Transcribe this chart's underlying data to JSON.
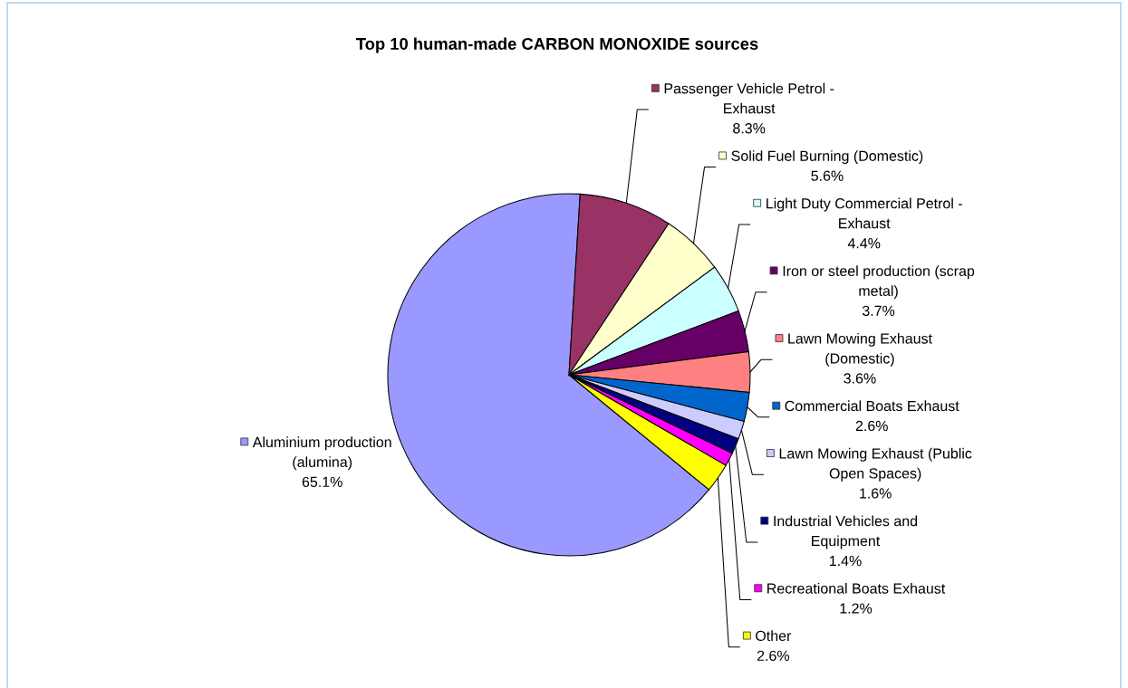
{
  "chart_data": {
    "type": "pie",
    "title": "Top 10 human-made CARBON MONOXIDE sources",
    "categories": [
      "Aluminium production (alumina)",
      "Passenger Vehicle Petrol - Exhaust",
      "Solid Fuel Burning (Domestic)",
      "Light Duty Commercial Petrol - Exhaust",
      "Iron or steel production (scrap metal)",
      "Lawn Mowing Exhaust (Domestic)",
      "Commercial Boats Exhaust",
      "Lawn Mowing Exhaust (Public Open Spaces)",
      "Industrial Vehicles and Equipment",
      "Recreational Boats Exhaust",
      "Other"
    ],
    "values": [
      65.1,
      8.3,
      5.6,
      4.4,
      3.7,
      3.6,
      2.6,
      1.6,
      1.4,
      1.2,
      2.6
    ],
    "value_labels": [
      "65.1%",
      "8.3%",
      "5.6%",
      "4.4%",
      "3.7%",
      "3.6%",
      "2.6%",
      "1.6%",
      "1.4%",
      "1.2%",
      "2.6%"
    ],
    "colors": [
      "#9999ff",
      "#993366",
      "#ffffcc",
      "#ccffff",
      "#660066",
      "#ff8080",
      "#0066cc",
      "#ccccff",
      "#000080",
      "#ff00ff",
      "#ffff00"
    ],
    "legend": "right"
  }
}
